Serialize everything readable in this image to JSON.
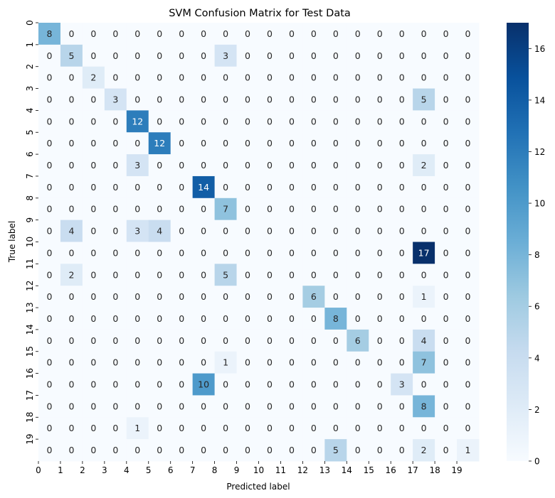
{
  "chart_data": {
    "type": "heatmap",
    "title": "SVM Confusion Matrix for Test Data",
    "xlabel": "Predicted label",
    "ylabel": "True label",
    "x_tick_labels": [
      "0",
      "1",
      "2",
      "3",
      "4",
      "5",
      "6",
      "7",
      "8",
      "9",
      "10",
      "11",
      "12",
      "13",
      "14",
      "15",
      "16",
      "17",
      "18",
      "19"
    ],
    "y_tick_labels": [
      "0",
      "1",
      "2",
      "3",
      "4",
      "5",
      "6",
      "7",
      "8",
      "9",
      "10",
      "11",
      "12",
      "13",
      "14",
      "15",
      "16",
      "17",
      "18",
      "19"
    ],
    "matrix": [
      [
        8,
        0,
        0,
        0,
        0,
        0,
        0,
        0,
        0,
        0,
        0,
        0,
        0,
        0,
        0,
        0,
        0,
        0,
        0,
        0
      ],
      [
        0,
        5,
        0,
        0,
        0,
        0,
        0,
        0,
        3,
        0,
        0,
        0,
        0,
        0,
        0,
        0,
        0,
        0,
        0,
        0
      ],
      [
        0,
        0,
        2,
        0,
        0,
        0,
        0,
        0,
        0,
        0,
        0,
        0,
        0,
        0,
        0,
        0,
        0,
        0,
        0,
        0
      ],
      [
        0,
        0,
        0,
        3,
        0,
        0,
        0,
        0,
        0,
        0,
        0,
        0,
        0,
        0,
        0,
        0,
        0,
        5,
        0,
        0
      ],
      [
        0,
        0,
        0,
        0,
        12,
        0,
        0,
        0,
        0,
        0,
        0,
        0,
        0,
        0,
        0,
        0,
        0,
        0,
        0,
        0
      ],
      [
        0,
        0,
        0,
        0,
        0,
        12,
        0,
        0,
        0,
        0,
        0,
        0,
        0,
        0,
        0,
        0,
        0,
        0,
        0,
        0
      ],
      [
        0,
        0,
        0,
        0,
        3,
        0,
        0,
        0,
        0,
        0,
        0,
        0,
        0,
        0,
        0,
        0,
        0,
        2,
        0,
        0
      ],
      [
        0,
        0,
        0,
        0,
        0,
        0,
        0,
        14,
        0,
        0,
        0,
        0,
        0,
        0,
        0,
        0,
        0,
        0,
        0,
        0
      ],
      [
        0,
        0,
        0,
        0,
        0,
        0,
        0,
        0,
        7,
        0,
        0,
        0,
        0,
        0,
        0,
        0,
        0,
        0,
        0,
        0
      ],
      [
        0,
        4,
        0,
        0,
        3,
        4,
        0,
        0,
        0,
        0,
        0,
        0,
        0,
        0,
        0,
        0,
        0,
        0,
        0,
        0
      ],
      [
        0,
        0,
        0,
        0,
        0,
        0,
        0,
        0,
        0,
        0,
        0,
        0,
        0,
        0,
        0,
        0,
        0,
        17,
        0,
        0
      ],
      [
        0,
        2,
        0,
        0,
        0,
        0,
        0,
        0,
        5,
        0,
        0,
        0,
        0,
        0,
        0,
        0,
        0,
        0,
        0,
        0
      ],
      [
        0,
        0,
        0,
        0,
        0,
        0,
        0,
        0,
        0,
        0,
        0,
        0,
        6,
        0,
        0,
        0,
        0,
        1,
        0,
        0
      ],
      [
        0,
        0,
        0,
        0,
        0,
        0,
        0,
        0,
        0,
        0,
        0,
        0,
        0,
        8,
        0,
        0,
        0,
        0,
        0,
        0
      ],
      [
        0,
        0,
        0,
        0,
        0,
        0,
        0,
        0,
        0,
        0,
        0,
        0,
        0,
        0,
        6,
        0,
        0,
        4,
        0,
        0
      ],
      [
        0,
        0,
        0,
        0,
        0,
        0,
        0,
        0,
        1,
        0,
        0,
        0,
        0,
        0,
        0,
        0,
        0,
        7,
        0,
        0
      ],
      [
        0,
        0,
        0,
        0,
        0,
        0,
        0,
        10,
        0,
        0,
        0,
        0,
        0,
        0,
        0,
        0,
        3,
        0,
        0,
        0
      ],
      [
        0,
        0,
        0,
        0,
        0,
        0,
        0,
        0,
        0,
        0,
        0,
        0,
        0,
        0,
        0,
        0,
        0,
        8,
        0,
        0
      ],
      [
        0,
        0,
        0,
        0,
        1,
        0,
        0,
        0,
        0,
        0,
        0,
        0,
        0,
        0,
        0,
        0,
        0,
        0,
        0,
        0
      ],
      [
        0,
        0,
        0,
        0,
        0,
        0,
        0,
        0,
        0,
        0,
        0,
        0,
        0,
        5,
        0,
        0,
        0,
        2,
        0,
        1
      ]
    ],
    "colorbar": {
      "min": 0,
      "max": 17,
      "ticks": [
        0,
        2,
        4,
        6,
        8,
        10,
        12,
        14,
        16
      ],
      "colormap": "Blues"
    }
  }
}
